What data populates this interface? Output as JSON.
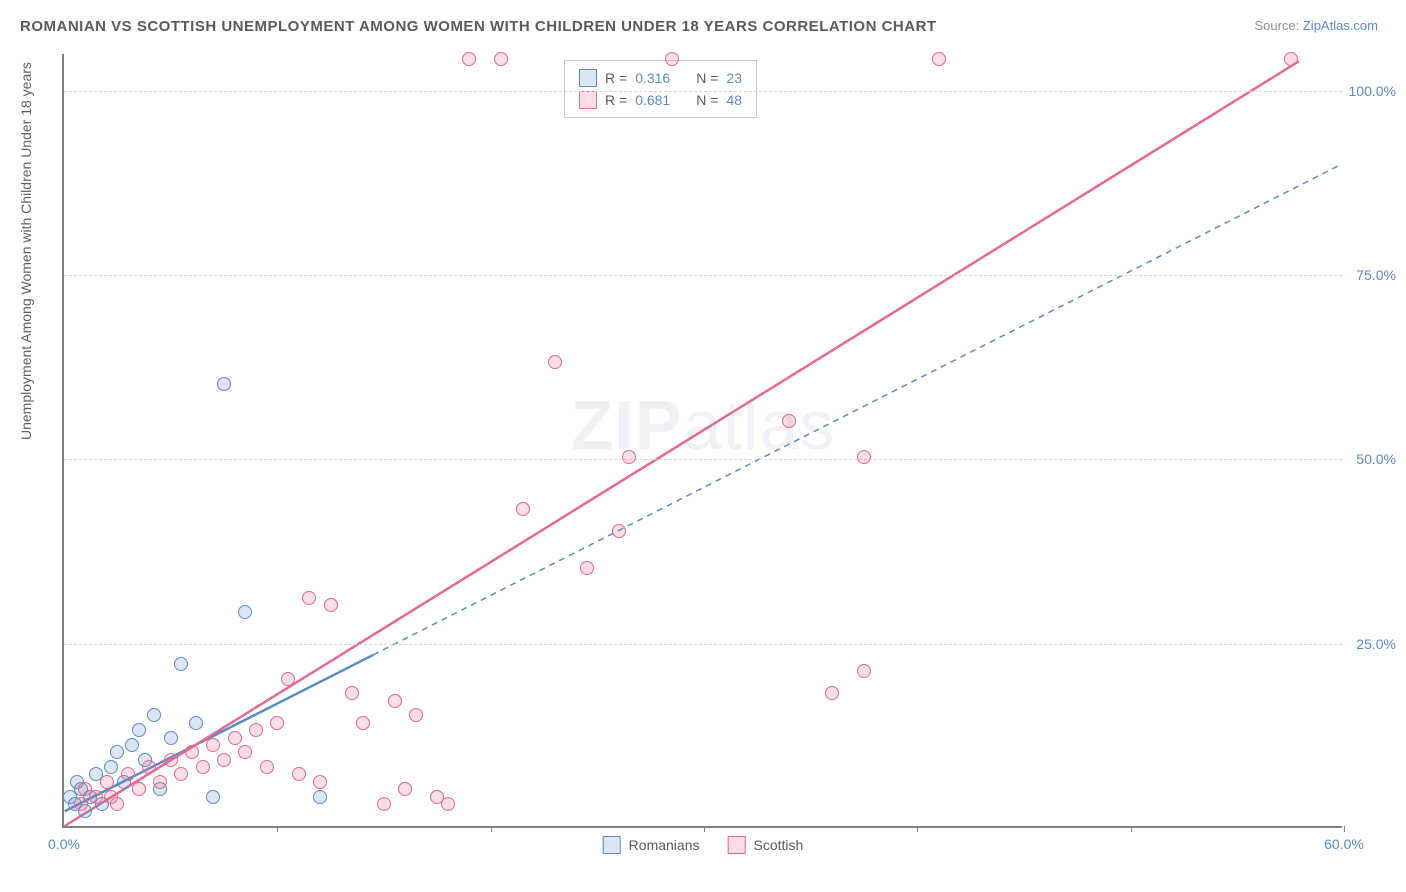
{
  "title": "ROMANIAN VS SCOTTISH UNEMPLOYMENT AMONG WOMEN WITH CHILDREN UNDER 18 YEARS CORRELATION CHART",
  "source_prefix": "Source: ",
  "source_link": "ZipAtlas.com",
  "y_axis_label": "Unemployment Among Women with Children Under 18 years",
  "watermark_bold": "ZIP",
  "watermark_thin": "atlas",
  "chart": {
    "type": "scatter",
    "x_range": [
      0,
      60
    ],
    "y_range": [
      0,
      105
    ],
    "x_ticks": [
      0,
      10,
      20,
      30,
      40,
      50,
      60
    ],
    "x_tick_labels": {
      "0": "0.0%",
      "60": "60.0%"
    },
    "y_ticks": [
      25,
      50,
      75,
      100
    ],
    "y_tick_labels": {
      "25": "25.0%",
      "50": "50.0%",
      "75": "75.0%",
      "100": "100.0%"
    },
    "grid_color": "#d8d8d8",
    "axis_color": "#808080",
    "background_color": "#ffffff",
    "point_radius": 7,
    "point_border_width": 1.5,
    "point_fill_opacity": 0.22
  },
  "series": [
    {
      "id": "romanians",
      "label": "Romanians",
      "color": "#5b8bc5",
      "fill": "rgba(91,139,197,0.22)",
      "R": "0.316",
      "N": "23",
      "trend": {
        "x1": 0,
        "y1": 2,
        "x2": 60,
        "y2": 90,
        "solid_until_x": 14.5,
        "stroke_width": 2.5
      },
      "points": [
        [
          0.5,
          3
        ],
        [
          0.8,
          5
        ],
        [
          1.2,
          4
        ],
        [
          1.5,
          7
        ],
        [
          1.8,
          3
        ],
        [
          2.2,
          8
        ],
        [
          2.5,
          10
        ],
        [
          2.8,
          6
        ],
        [
          3.2,
          11
        ],
        [
          3.5,
          13
        ],
        [
          3.8,
          9
        ],
        [
          4.2,
          15
        ],
        [
          4.5,
          5
        ],
        [
          5.0,
          12
        ],
        [
          5.5,
          22
        ],
        [
          6.2,
          14
        ],
        [
          7.0,
          4
        ],
        [
          7.5,
          60
        ],
        [
          8.5,
          29
        ],
        [
          12.0,
          4
        ],
        [
          1.0,
          2
        ],
        [
          0.3,
          4
        ],
        [
          0.6,
          6
        ]
      ]
    },
    {
      "id": "scottish",
      "label": "Scottish",
      "color": "#e26a8f",
      "fill": "rgba(226,106,143,0.22)",
      "R": "0.681",
      "N": "48",
      "trend": {
        "x1": 0,
        "y1": 0,
        "x2": 58,
        "y2": 104,
        "solid_until_x": 58,
        "stroke_width": 2.5
      },
      "points": [
        [
          0.8,
          3
        ],
        [
          1.5,
          4
        ],
        [
          2.0,
          6
        ],
        [
          2.5,
          3
        ],
        [
          3.0,
          7
        ],
        [
          3.5,
          5
        ],
        [
          4.0,
          8
        ],
        [
          4.5,
          6
        ],
        [
          5.0,
          9
        ],
        [
          5.5,
          7
        ],
        [
          6.0,
          10
        ],
        [
          6.5,
          8
        ],
        [
          7.0,
          11
        ],
        [
          7.5,
          9
        ],
        [
          8.0,
          12
        ],
        [
          8.5,
          10
        ],
        [
          9.0,
          13
        ],
        [
          9.5,
          8
        ],
        [
          10.0,
          14
        ],
        [
          10.5,
          20
        ],
        [
          11.0,
          7
        ],
        [
          11.5,
          31
        ],
        [
          12.0,
          6
        ],
        [
          12.5,
          30
        ],
        [
          13.5,
          18
        ],
        [
          14.0,
          14
        ],
        [
          15.0,
          3
        ],
        [
          15.5,
          17
        ],
        [
          16.0,
          5
        ],
        [
          16.5,
          15
        ],
        [
          17.5,
          4
        ],
        [
          18.0,
          3
        ],
        [
          19.0,
          104
        ],
        [
          20.5,
          104
        ],
        [
          21.5,
          43
        ],
        [
          23.0,
          63
        ],
        [
          24.5,
          35
        ],
        [
          26.0,
          40
        ],
        [
          26.5,
          50
        ],
        [
          28.5,
          104
        ],
        [
          34.0,
          55
        ],
        [
          36.0,
          18
        ],
        [
          37.5,
          50
        ],
        [
          37.5,
          21
        ],
        [
          41.0,
          104
        ],
        [
          57.5,
          104
        ],
        [
          1.0,
          5
        ],
        [
          2.2,
          4
        ]
      ]
    }
  ],
  "legend_top": {
    "R_label": "R =",
    "N_label": "N ="
  }
}
